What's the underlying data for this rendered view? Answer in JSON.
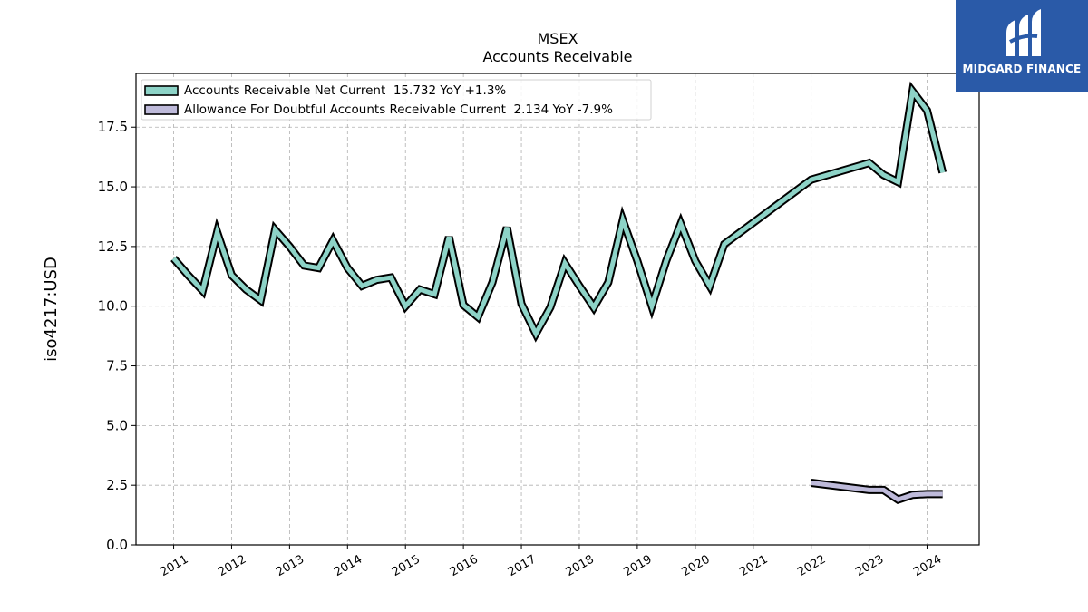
{
  "chart_data": {
    "type": "line",
    "title": "MSEX",
    "subtitle": "Accounts Receivable",
    "ylabel": "iso4217:USD",
    "xlabel": "",
    "ylim": [
      0,
      19.75
    ],
    "xlim": [
      2010.35,
      2024.9
    ],
    "y_ticks": [
      "0.0",
      "2.5",
      "5.0",
      "7.5",
      "10.0",
      "12.5",
      "15.0",
      "17.5"
    ],
    "x_ticks": [
      "2011",
      "2012",
      "2013",
      "2014",
      "2015",
      "2016",
      "2017",
      "2018",
      "2019",
      "2020",
      "2021",
      "2022",
      "2023",
      "2024"
    ],
    "grid": true,
    "legend_position": "top-left",
    "series": [
      {
        "name": "Accounts Receivable Net Current  15.732 YoY +1.3%",
        "color": "#8dd3c7",
        "points": [
          [
            2011.0,
            12.0
          ],
          [
            2011.25,
            11.3
          ],
          [
            2011.5,
            10.65
          ],
          [
            2011.75,
            13.1
          ],
          [
            2012.0,
            11.3
          ],
          [
            2012.25,
            10.7
          ],
          [
            2012.5,
            10.25
          ],
          [
            2012.75,
            13.2
          ],
          [
            2013.0,
            12.5
          ],
          [
            2013.25,
            11.7
          ],
          [
            2013.5,
            11.6
          ],
          [
            2013.75,
            12.75
          ],
          [
            2014.0,
            11.6
          ],
          [
            2014.25,
            10.85
          ],
          [
            2014.5,
            11.1
          ],
          [
            2014.75,
            11.2
          ],
          [
            2015.0,
            10.0
          ],
          [
            2015.25,
            10.7
          ],
          [
            2015.5,
            10.5
          ],
          [
            2015.75,
            12.9
          ],
          [
            2016.0,
            10.05
          ],
          [
            2016.25,
            9.55
          ],
          [
            2016.5,
            11.0
          ],
          [
            2016.75,
            13.3
          ],
          [
            2017.0,
            10.1
          ],
          [
            2017.25,
            8.85
          ],
          [
            2017.5,
            9.95
          ],
          [
            2017.75,
            11.8
          ],
          [
            2018.0,
            10.85
          ],
          [
            2018.25,
            9.95
          ],
          [
            2018.5,
            11.0
          ],
          [
            2018.75,
            13.6
          ],
          [
            2019.0,
            11.9
          ],
          [
            2019.25,
            10.0
          ],
          [
            2019.5,
            11.9
          ],
          [
            2019.75,
            13.45
          ],
          [
            2020.0,
            11.9
          ],
          [
            2020.25,
            10.85
          ],
          [
            2020.5,
            12.6
          ],
          [
            2022.0,
            15.3
          ],
          [
            2023.0,
            16.0
          ],
          [
            2023.25,
            15.5
          ],
          [
            2023.5,
            15.2
          ],
          [
            2023.75,
            19.0
          ],
          [
            2024.0,
            18.2
          ],
          [
            2024.27,
            15.6
          ]
        ]
      },
      {
        "name": "Allowance For Doubtful Accounts Receivable Current  2.134 YoY -7.9%",
        "color": "#bebada",
        "points": [
          [
            2022.0,
            2.6
          ],
          [
            2023.0,
            2.3
          ],
          [
            2023.25,
            2.3
          ],
          [
            2023.5,
            1.9
          ],
          [
            2023.75,
            2.1
          ],
          [
            2024.0,
            2.13
          ],
          [
            2024.27,
            2.13
          ]
        ]
      }
    ]
  },
  "logo": {
    "text": "MIDGARD FINANCE"
  }
}
